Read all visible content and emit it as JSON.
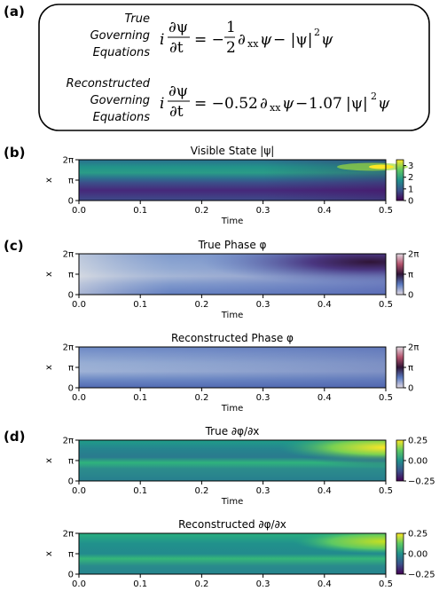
{
  "panel_labels": {
    "a": "(a)",
    "b": "(b)",
    "c": "(c)",
    "d": "(d)"
  },
  "equations": {
    "true_label": [
      "True",
      "Governing",
      "Equations"
    ],
    "reconstructed_label": [
      "Reconstructed",
      "Governing",
      "Equations"
    ],
    "true_coefficients": {
      "dxx": "1",
      "nonlinear": ""
    },
    "reconstructed_coefficients": {
      "dxx": "0.52",
      "nonlinear": "1.07"
    }
  },
  "chart_data": [
    {
      "type": "heatmap",
      "title": "Visible State |ψ|",
      "xlabel": "Time",
      "ylabel": "x",
      "xticks": [
        "0.0",
        "0.1",
        "0.2",
        "0.3",
        "0.4",
        "0.5"
      ],
      "yticks": [
        "0",
        "π",
        "2π"
      ],
      "colorbar_ticks": [
        "0",
        "1",
        "2",
        "3"
      ],
      "colormap": "viridis",
      "colormap_colors": [
        "#440154",
        "#3b528b",
        "#21918c",
        "#5ec962",
        "#fde725"
      ]
    },
    {
      "type": "heatmap",
      "title": "True Phase φ",
      "xlabel": "Time",
      "ylabel": "x",
      "xticks": [
        "0.0",
        "0.1",
        "0.2",
        "0.3",
        "0.4",
        "0.5"
      ],
      "yticks": [
        "0",
        "π",
        "2π"
      ],
      "colorbar_ticks": [
        "0",
        "π",
        "2π"
      ],
      "colormap": "twilight",
      "colormap_colors": [
        "#e2d9e2",
        "#5a7ac0",
        "#2f1436",
        "#b4536d",
        "#e2d9e2"
      ]
    },
    {
      "type": "heatmap",
      "title": "Reconstructed Phase φ",
      "xlabel": "Time",
      "ylabel": "x",
      "xticks": [
        "0.0",
        "0.1",
        "0.2",
        "0.3",
        "0.4",
        "0.5"
      ],
      "yticks": [
        "0",
        "π",
        "2π"
      ],
      "colorbar_ticks": [
        "0",
        "π",
        "2π"
      ],
      "colormap": "twilight",
      "colormap_colors": [
        "#e2d9e2",
        "#5a7ac0",
        "#2f1436",
        "#b4536d",
        "#e2d9e2"
      ]
    },
    {
      "type": "heatmap",
      "title": "True ∂φ/∂x",
      "xlabel": "Time",
      "ylabel": "x",
      "xticks": [
        "0.0",
        "0.1",
        "0.2",
        "0.3",
        "0.4",
        "0.5"
      ],
      "yticks": [
        "0",
        "π",
        "2π"
      ],
      "colorbar_ticks": [
        "0.25",
        "0.00",
        "−0.25"
      ],
      "colormap": "viridis",
      "colormap_colors": [
        "#440154",
        "#3b528b",
        "#21918c",
        "#5ec962",
        "#fde725"
      ]
    },
    {
      "type": "heatmap",
      "title": "Reconstructed ∂φ/∂x",
      "xlabel": "",
      "ylabel": "x",
      "xticks": [
        "0.0",
        "0.1",
        "0.2",
        "0.3",
        "0.4",
        "0.5"
      ],
      "yticks": [
        "0",
        "π",
        "2π"
      ],
      "colorbar_ticks": [
        "0.25",
        "0.00",
        "−0.25"
      ],
      "colormap": "viridis",
      "colormap_colors": [
        "#440154",
        "#3b528b",
        "#21918c",
        "#5ec962",
        "#fde725"
      ]
    }
  ]
}
